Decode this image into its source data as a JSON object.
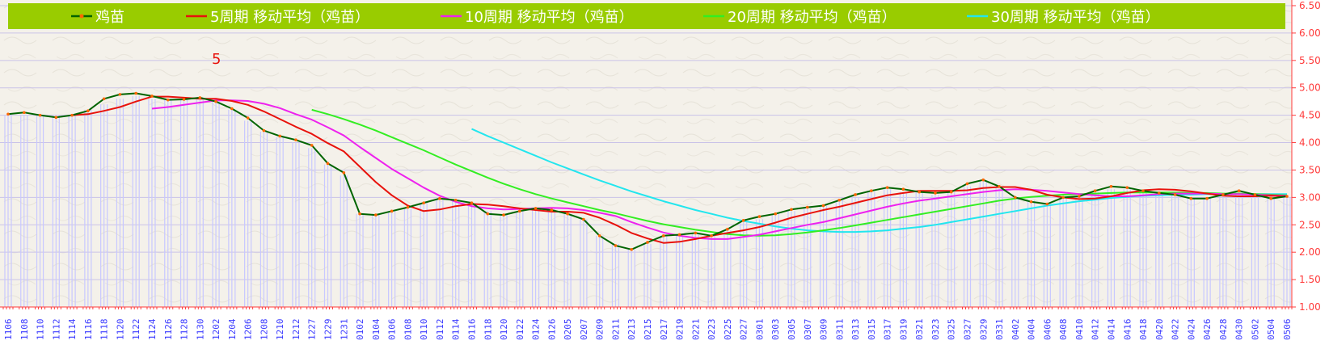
{
  "chart_data": {
    "type": "line",
    "title": "",
    "xlabel": "",
    "ylabel": "",
    "ylim": [
      1.0,
      6.5
    ],
    "yticks": [
      "1.00",
      "1.50",
      "2.00",
      "2.50",
      "3.00",
      "3.50",
      "4.00",
      "4.50",
      "5.00",
      "5.50",
      "6.00",
      "6.50"
    ],
    "grid": true,
    "legend_position": "top",
    "annotation": "5",
    "colors": {
      "legend_bar": "#99cc00",
      "price": "#006400",
      "price_marker": "#ff6600",
      "ma5": "#e8120c",
      "ma10": "#ee22ee",
      "ma20": "#33ee22",
      "ma30": "#22e6ee",
      "volume_bars": "#c8c8ff",
      "ytick": "#ff3b3b",
      "xtick": "#3a3aff"
    },
    "x": [
      "1106",
      "1108",
      "1110",
      "1112",
      "1114",
      "1116",
      "1118",
      "1120",
      "1122",
      "1124",
      "1126",
      "1128",
      "1130",
      "1202",
      "1204",
      "1206",
      "1208",
      "1210",
      "1212",
      "1227",
      "1229",
      "1231",
      "0102",
      "0104",
      "0106",
      "0108",
      "0110",
      "0112",
      "0114",
      "0116",
      "0118",
      "0120",
      "0122",
      "0124",
      "0126",
      "0205",
      "0207",
      "0209",
      "0211",
      "0213",
      "0215",
      "0217",
      "0219",
      "0221",
      "0223",
      "0225",
      "0227",
      "0301",
      "0303",
      "0305",
      "0307",
      "0309",
      "0311",
      "0313",
      "0315",
      "0317",
      "0319",
      "0321",
      "0323",
      "0325",
      "0327",
      "0329",
      "0331",
      "0402",
      "0404",
      "0406",
      "0408",
      "0410",
      "0412",
      "0414",
      "0416",
      "0418",
      "0420",
      "0422",
      "0424",
      "0426",
      "0428",
      "0430",
      "0502",
      "0504",
      "0506"
    ],
    "series": [
      {
        "name": "鸡苗",
        "key": "price",
        "values": [
          4.52,
          4.55,
          4.5,
          4.46,
          4.5,
          4.58,
          4.8,
          4.88,
          4.9,
          4.85,
          4.78,
          4.79,
          4.82,
          4.75,
          4.62,
          4.45,
          4.22,
          4.12,
          4.05,
          3.95,
          3.62,
          3.45,
          2.7,
          2.68,
          2.75,
          2.82,
          2.9,
          2.98,
          2.95,
          2.9,
          2.7,
          2.68,
          2.75,
          2.8,
          2.77,
          2.7,
          2.6,
          2.3,
          2.12,
          2.05,
          2.18,
          2.3,
          2.32,
          2.35,
          2.3,
          2.42,
          2.58,
          2.65,
          2.7,
          2.78,
          2.82,
          2.85,
          2.95,
          3.05,
          3.12,
          3.18,
          3.15,
          3.1,
          3.08,
          3.1,
          3.25,
          3.32,
          3.2,
          3.0,
          2.92,
          2.88,
          3.0,
          3.02,
          3.12,
          3.2,
          3.18,
          3.12,
          3.08,
          3.05,
          2.98,
          2.98,
          3.05,
          3.12,
          3.05,
          2.98,
          3.02
        ]
      },
      {
        "name": "5周期 移动平均（鸡苗）",
        "key": "ma5",
        "values": [
          null,
          null,
          null,
          null,
          4.5,
          4.52,
          4.58,
          4.65,
          4.75,
          4.84,
          4.84,
          4.82,
          4.8,
          4.8,
          4.76,
          4.69,
          4.57,
          4.43,
          4.29,
          4.16,
          3.99,
          3.84,
          3.56,
          3.28,
          3.04,
          2.85,
          2.75,
          2.78,
          2.84,
          2.88,
          2.87,
          2.84,
          2.8,
          2.77,
          2.74,
          2.74,
          2.72,
          2.63,
          2.5,
          2.35,
          2.25,
          2.17,
          2.19,
          2.24,
          2.3,
          2.35,
          2.4,
          2.46,
          2.54,
          2.63,
          2.7,
          2.77,
          2.83,
          2.9,
          2.97,
          3.04,
          3.08,
          3.12,
          3.12,
          3.12,
          3.13,
          3.17,
          3.19,
          3.19,
          3.14,
          3.05,
          3.0,
          2.97,
          2.98,
          3.02,
          3.08,
          3.13,
          3.15,
          3.14,
          3.11,
          3.07,
          3.03,
          3.02,
          3.02,
          3.03,
          3.02
        ]
      },
      {
        "name": "10周期 移动平均（鸡苗）",
        "key": "ma10",
        "values": [
          null,
          null,
          null,
          null,
          null,
          null,
          null,
          null,
          null,
          4.62,
          4.65,
          4.69,
          4.73,
          4.77,
          4.77,
          4.76,
          4.71,
          4.63,
          4.52,
          4.42,
          4.28,
          4.13,
          3.92,
          3.72,
          3.52,
          3.35,
          3.18,
          3.03,
          2.92,
          2.84,
          2.8,
          2.78,
          2.79,
          2.8,
          2.81,
          2.8,
          2.77,
          2.72,
          2.66,
          2.55,
          2.45,
          2.36,
          2.3,
          2.26,
          2.24,
          2.24,
          2.28,
          2.32,
          2.38,
          2.44,
          2.5,
          2.55,
          2.62,
          2.69,
          2.76,
          2.83,
          2.89,
          2.94,
          2.98,
          3.02,
          3.06,
          3.1,
          3.13,
          3.15,
          3.14,
          3.12,
          3.09,
          3.06,
          3.04,
          3.02,
          3.02,
          3.04,
          3.06,
          3.07,
          3.07,
          3.07,
          3.06,
          3.06,
          3.05,
          3.04,
          3.03
        ]
      },
      {
        "name": "20周期 移动平均（鸡苗）",
        "key": "ma20",
        "values": [
          null,
          null,
          null,
          null,
          null,
          null,
          null,
          null,
          null,
          null,
          null,
          null,
          null,
          null,
          null,
          null,
          null,
          null,
          null,
          4.6,
          4.52,
          4.43,
          4.33,
          4.22,
          4.1,
          3.98,
          3.86,
          3.73,
          3.6,
          3.48,
          3.36,
          3.25,
          3.15,
          3.06,
          2.98,
          2.91,
          2.84,
          2.77,
          2.71,
          2.64,
          2.57,
          2.51,
          2.46,
          2.41,
          2.37,
          2.33,
          2.31,
          2.3,
          2.31,
          2.33,
          2.36,
          2.4,
          2.44,
          2.49,
          2.54,
          2.59,
          2.64,
          2.69,
          2.74,
          2.79,
          2.84,
          2.89,
          2.94,
          2.98,
          3.01,
          3.03,
          3.05,
          3.06,
          3.07,
          3.08,
          3.09,
          3.09,
          3.09,
          3.09,
          3.08,
          3.08,
          3.07,
          3.07,
          3.06,
          3.05,
          3.04
        ]
      },
      {
        "name": "30周期 移动平均（鸡苗）",
        "key": "ma30",
        "values": [
          null,
          null,
          null,
          null,
          null,
          null,
          null,
          null,
          null,
          null,
          null,
          null,
          null,
          null,
          null,
          null,
          null,
          null,
          null,
          null,
          null,
          null,
          null,
          null,
          null,
          null,
          null,
          null,
          null,
          4.25,
          4.12,
          4.0,
          3.88,
          3.76,
          3.64,
          3.53,
          3.42,
          3.31,
          3.21,
          3.11,
          3.02,
          2.93,
          2.85,
          2.77,
          2.7,
          2.63,
          2.57,
          2.52,
          2.47,
          2.43,
          2.4,
          2.38,
          2.37,
          2.37,
          2.38,
          2.4,
          2.43,
          2.46,
          2.5,
          2.55,
          2.6,
          2.65,
          2.7,
          2.75,
          2.8,
          2.85,
          2.89,
          2.93,
          2.96,
          2.99,
          3.01,
          3.03,
          3.04,
          3.05,
          3.05,
          3.06,
          3.06,
          3.06,
          3.06,
          3.06,
          3.06
        ]
      }
    ],
    "volume": [
      4.5,
      4.5,
      4.5,
      4.5,
      4.5,
      4.6,
      4.7,
      4.8,
      4.85,
      4.8,
      4.8,
      4.8,
      4.8,
      4.75,
      4.6,
      4.4,
      4.2,
      4.1,
      4.0,
      3.9,
      3.6,
      3.4,
      2.7,
      2.7,
      2.75,
      2.8,
      2.9,
      2.95,
      2.95,
      2.9,
      2.75,
      2.7,
      2.75,
      2.8,
      2.8,
      2.7,
      2.6,
      2.3,
      2.15,
      2.05,
      2.15,
      2.3,
      2.3,
      2.35,
      2.3,
      2.4,
      2.55,
      2.6,
      2.7,
      2.75,
      2.8,
      2.85,
      2.95,
      3.0,
      3.1,
      3.15,
      3.1,
      3.1,
      3.05,
      3.1,
      3.2,
      3.3,
      3.2,
      3.0,
      2.95,
      2.9,
      3.0,
      3.0,
      3.1,
      3.15,
      3.15,
      3.1,
      3.05,
      3.05,
      3.0,
      3.0,
      3.05,
      3.1,
      3.05,
      3.0,
      3.0
    ]
  }
}
